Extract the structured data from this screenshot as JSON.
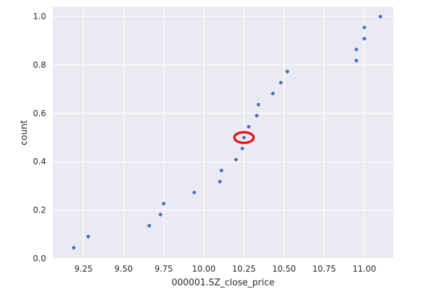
{
  "chart_data": {
    "type": "scatter",
    "title": "",
    "xlabel": "000001.SZ_close_price",
    "ylabel": "count",
    "xlim": [
      9.06,
      11.18
    ],
    "ylim": [
      0.0,
      1.04
    ],
    "xticks": [
      9.25,
      9.5,
      9.75,
      10.0,
      10.25,
      10.5,
      10.75,
      11.0
    ],
    "xtick_labels": [
      "9.25",
      "9.50",
      "9.75",
      "10.00",
      "10.25",
      "10.50",
      "10.75",
      "11.00"
    ],
    "yticks": [
      0.0,
      0.2,
      0.4,
      0.6,
      0.8,
      1.0
    ],
    "ytick_labels": [
      "0.0",
      "0.2",
      "0.4",
      "0.6",
      "0.8",
      "1.0"
    ],
    "grid": true,
    "colors": {
      "background": "#eaeaf2",
      "grid": "#ffffff",
      "point": "#4c72b0",
      "highlight": "#e8141c"
    },
    "points": [
      {
        "x": 9.19,
        "y": 0.045
      },
      {
        "x": 9.28,
        "y": 0.091
      },
      {
        "x": 9.66,
        "y": 0.136
      },
      {
        "x": 9.73,
        "y": 0.182
      },
      {
        "x": 9.75,
        "y": 0.227
      },
      {
        "x": 9.94,
        "y": 0.273
      },
      {
        "x": 10.1,
        "y": 0.318
      },
      {
        "x": 10.11,
        "y": 0.364
      },
      {
        "x": 10.2,
        "y": 0.409
      },
      {
        "x": 10.24,
        "y": 0.455
      },
      {
        "x": 10.25,
        "y": 0.5
      },
      {
        "x": 10.28,
        "y": 0.545
      },
      {
        "x": 10.33,
        "y": 0.591
      },
      {
        "x": 10.34,
        "y": 0.636
      },
      {
        "x": 10.43,
        "y": 0.682
      },
      {
        "x": 10.48,
        "y": 0.727
      },
      {
        "x": 10.52,
        "y": 0.773
      },
      {
        "x": 10.95,
        "y": 0.818
      },
      {
        "x": 10.95,
        "y": 0.864
      },
      {
        "x": 11.0,
        "y": 0.909
      },
      {
        "x": 11.0,
        "y": 0.955
      },
      {
        "x": 11.1,
        "y": 1.0
      }
    ],
    "annotation": {
      "shape": "ellipse",
      "x": 10.25,
      "y": 0.5,
      "rx_data": 0.06,
      "ry_data": 0.022
    }
  }
}
